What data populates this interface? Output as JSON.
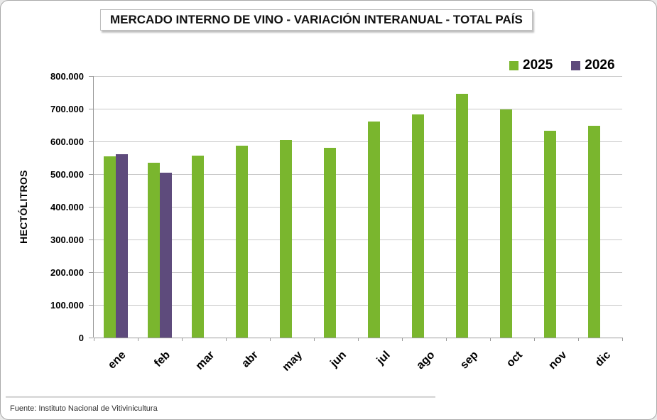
{
  "title": "MERCADO INTERNO DE VINO - VARIACIÓN INTERANUAL - TOTAL PAÍS",
  "legend": {
    "items": [
      {
        "label": "2025",
        "color": "#7AB62E"
      },
      {
        "label": "2026",
        "color": "#5E4B7C"
      }
    ]
  },
  "y_axis": {
    "title": "HECTÓLITROS",
    "tick_labels": [
      "800.000",
      "700.000",
      "600.000",
      "500.000",
      "400.000",
      "300.000",
      "200.000",
      "100.000",
      "0"
    ]
  },
  "footer": {
    "source": "Fuente: Instituto Nacional de Vitivinicultura"
  },
  "colors": {
    "series_2025": "#7AB62E",
    "series_2026": "#5E4B7C",
    "gridline": "#C8C8C8",
    "axis": "#9A9A9A"
  },
  "chart_data": {
    "type": "bar",
    "title": "MERCADO INTERNO DE VINO - VARIACIÓN INTERANUAL - TOTAL PAÍS",
    "categories": [
      "ene",
      "feb",
      "mar",
      "abr",
      "may",
      "jun",
      "jul",
      "ago",
      "sep",
      "oct",
      "nov",
      "dic"
    ],
    "series": [
      {
        "name": "2025",
        "color": "#7AB62E",
        "values": [
          555000,
          535000,
          557000,
          588000,
          604000,
          580000,
          661000,
          682000,
          746000,
          698000,
          632000,
          648000
        ]
      },
      {
        "name": "2026",
        "color": "#5E4B7C",
        "values": [
          560000,
          505000,
          null,
          null,
          null,
          null,
          null,
          null,
          null,
          null,
          null,
          null
        ]
      }
    ],
    "xlabel": "",
    "ylabel": "HECTÓLITROS",
    "ylim": [
      0,
      800000
    ],
    "ytick_step": 100000,
    "grid": true,
    "legend_position": "top-right"
  }
}
